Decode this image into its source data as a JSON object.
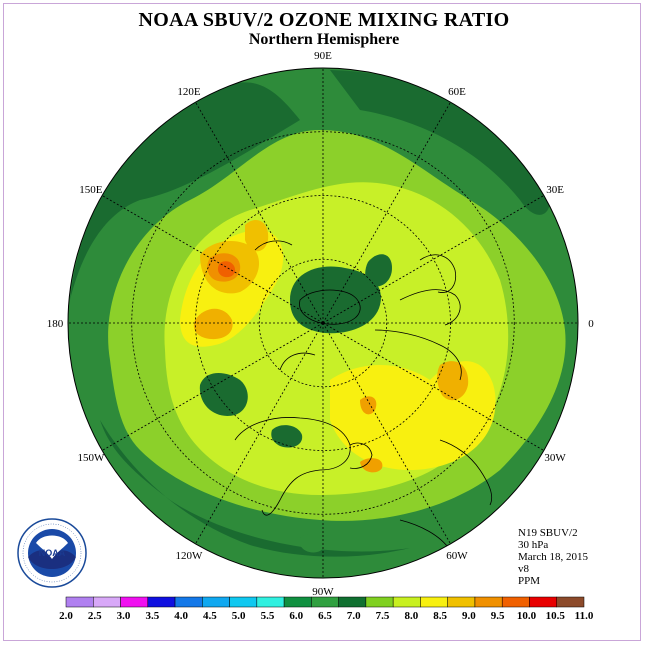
{
  "title": "NOAA SBUV/2 OZONE MIXING RATIO",
  "subtitle": "Northern Hemisphere",
  "longitude_labels": [
    "90E",
    "60E",
    "30E",
    "0",
    "30W",
    "60W",
    "90W",
    "120W",
    "150W",
    "180",
    "150E",
    "120E"
  ],
  "info": {
    "satellite": "N19 SBUV/2",
    "level": "30 hPa",
    "date": "March 18, 2015",
    "version": "v8",
    "units": "PPM"
  },
  "legend": {
    "ticks": [
      "2.0",
      "2.5",
      "3.0",
      "3.5",
      "4.0",
      "4.5",
      "5.0",
      "5.5",
      "6.0",
      "6.5",
      "7.0",
      "7.5",
      "8.0",
      "8.5",
      "9.0",
      "9.5",
      "10.0",
      "10.5",
      "11.0"
    ],
    "colors": [
      "#b080f0",
      "#d8a8f8",
      "#f010f0",
      "#1010e0",
      "#1478e8",
      "#10a8f0",
      "#10c8f0",
      "#30f0e0",
      "#109040",
      "#30a040",
      "#107030",
      "#80d020",
      "#c8f020",
      "#f8f010",
      "#f0c000",
      "#f09000",
      "#f06000",
      "#e80000",
      "#8c4a2a"
    ]
  },
  "logo": {
    "name": "NOAA",
    "ring_text": "NATIONAL OCEANIC AND ATMOSPHERIC ADMINISTRATION · U.S. DEPARTMENT OF COMMERCE"
  }
}
